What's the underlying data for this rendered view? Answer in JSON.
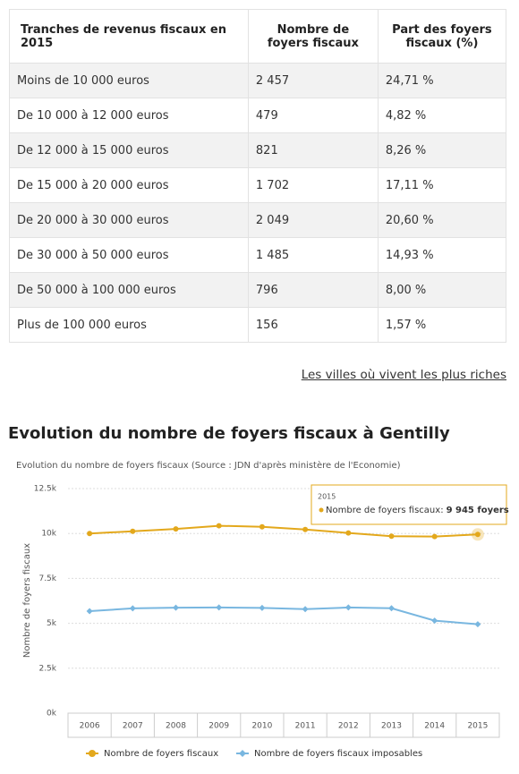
{
  "table": {
    "header": [
      "Tranches de revenus fiscaux en 2015",
      "Nombre de foyers fiscaux",
      "Part des foyers fiscaux (%)"
    ],
    "rows": [
      [
        "Moins de 10 000 euros",
        "2 457",
        "24,71 %"
      ],
      [
        "De 10 000 à 12 000 euros",
        "479",
        "4,82 %"
      ],
      [
        "De 12 000 à 15 000 euros",
        "821",
        "8,26 %"
      ],
      [
        "De 15 000 à 20 000 euros",
        "1 702",
        "17,11 %"
      ],
      [
        "De 20 000 à 30 000 euros",
        "2 049",
        "20,60 %"
      ],
      [
        "De 30 000 à 50 000 euros",
        "1 485",
        "14,93 %"
      ],
      [
        "De 50 000 à 100 000 euros",
        "796",
        "8,00 %"
      ],
      [
        "Plus de 100 000 euros",
        "156",
        "1,57 %"
      ]
    ]
  },
  "link": "Les villes où vivent les plus riches",
  "heading": "Evolution du nombre de foyers fiscaux à Gentilly",
  "chart_data": {
    "type": "line",
    "subtitle": "Evolution du nombre de foyers fiscaux (Source : JDN d'après ministère de l'Economie)",
    "y_label": "Nombre de foyers fiscaux",
    "categories": [
      "2006",
      "2007",
      "2008",
      "2009",
      "2010",
      "2011",
      "2012",
      "2013",
      "2014",
      "2015"
    ],
    "series": [
      {
        "name": "Nombre de foyers fiscaux",
        "color": "#e3a81c",
        "marker": "circle",
        "values": [
          10000,
          10120,
          10250,
          10430,
          10370,
          10220,
          10030,
          9850,
          9830,
          9945
        ]
      },
      {
        "name": "Nombre de foyers fiscaux imposables",
        "color": "#79b7e0",
        "marker": "diamond",
        "values": [
          5680,
          5830,
          5870,
          5880,
          5860,
          5790,
          5880,
          5840,
          5150,
          4950
        ]
      }
    ],
    "ylim": [
      0,
      12500
    ],
    "yticks": [
      {
        "value": 0,
        "label": "0k"
      },
      {
        "value": 2500,
        "label": "2.5k"
      },
      {
        "value": 5000,
        "label": "5k"
      },
      {
        "value": 7500,
        "label": "7.5k"
      },
      {
        "value": 10000,
        "label": "10k"
      },
      {
        "value": 12500,
        "label": "12.5k"
      }
    ],
    "grid": true,
    "tooltip": {
      "title": "2015",
      "series_label": "Nombre de foyers fiscaux:",
      "value_label": "9 945 foyers"
    }
  }
}
